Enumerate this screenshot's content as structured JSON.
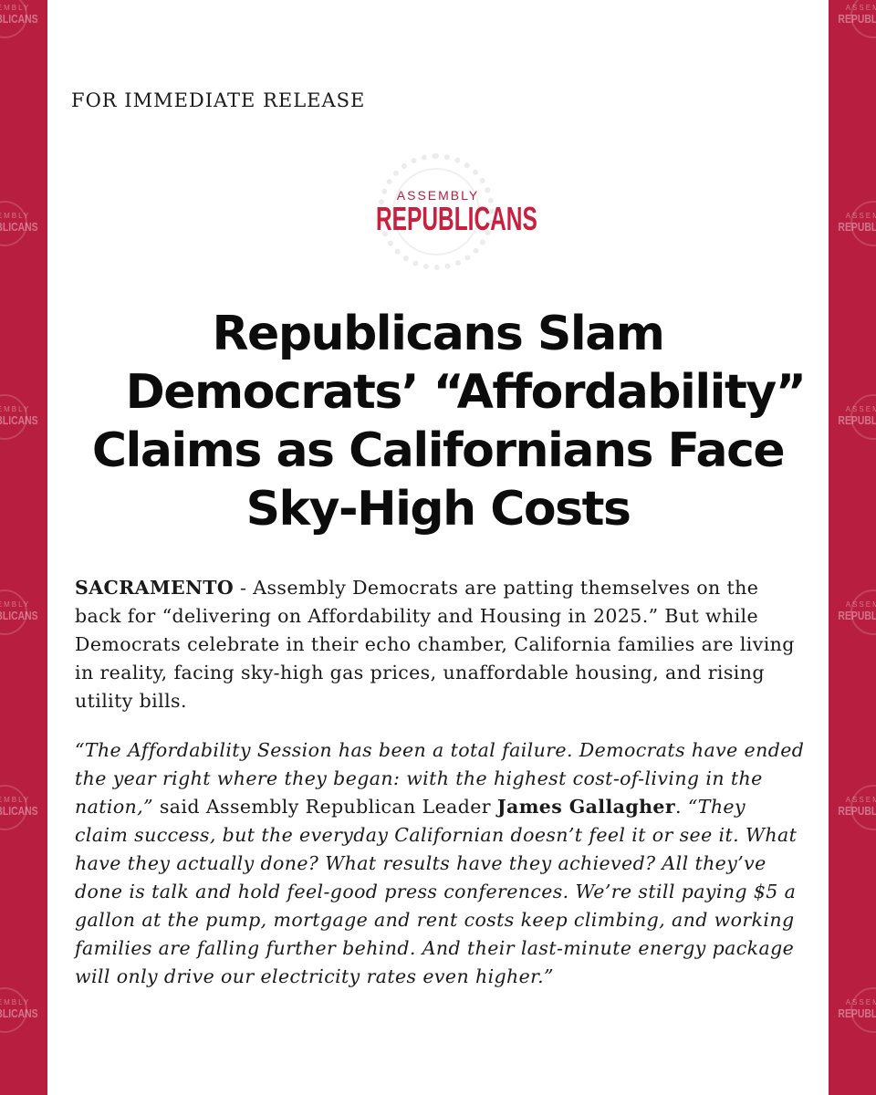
{
  "release_label": "FOR IMMEDIATE RELEASE",
  "logo": {
    "top": "ASSEMBLY",
    "main": "REPUBLICANS"
  },
  "headline": {
    "line1": "Republicans Slam",
    "line2": "Democrats’ “Affordability”",
    "line3": "Claims as Californians Face",
    "line4": "Sky-High Costs"
  },
  "paragraph1": {
    "dateline": "SACRAMENTO",
    "text": " - Assembly Democrats are patting themselves on the back for “delivering on Affordability and Housing in 2025.” But while Democrats celebrate in their echo chamber, California families are living in reality, facing sky-high gas prices, unaffordable housing, and rising utility bills."
  },
  "paragraph2": {
    "quote_open": "“The Affordability Session has been a total failure. Democrats have ended the year right where they began: with the highest cost-of-living in the nation,”",
    "attribution": " said Assembly Republican Leader ",
    "speaker": "James Gallagher",
    "period": ". ",
    "quote_close": "“They claim success, but the everyday Californian doesn’t feel it or see it. What have they actually done? What results have they achieved? All they’ve done is talk and hold feel-good press conferences. We’re still paying $5 a gallon at the pump, mortgage and rent costs keep climbing, and working families are falling further behind. And their last-minute energy package will only drive our electricity rates even higher.”"
  },
  "colors": {
    "brand_red": "#b81e3f",
    "paper": "#ffffff",
    "text": "#1a1a1a"
  }
}
